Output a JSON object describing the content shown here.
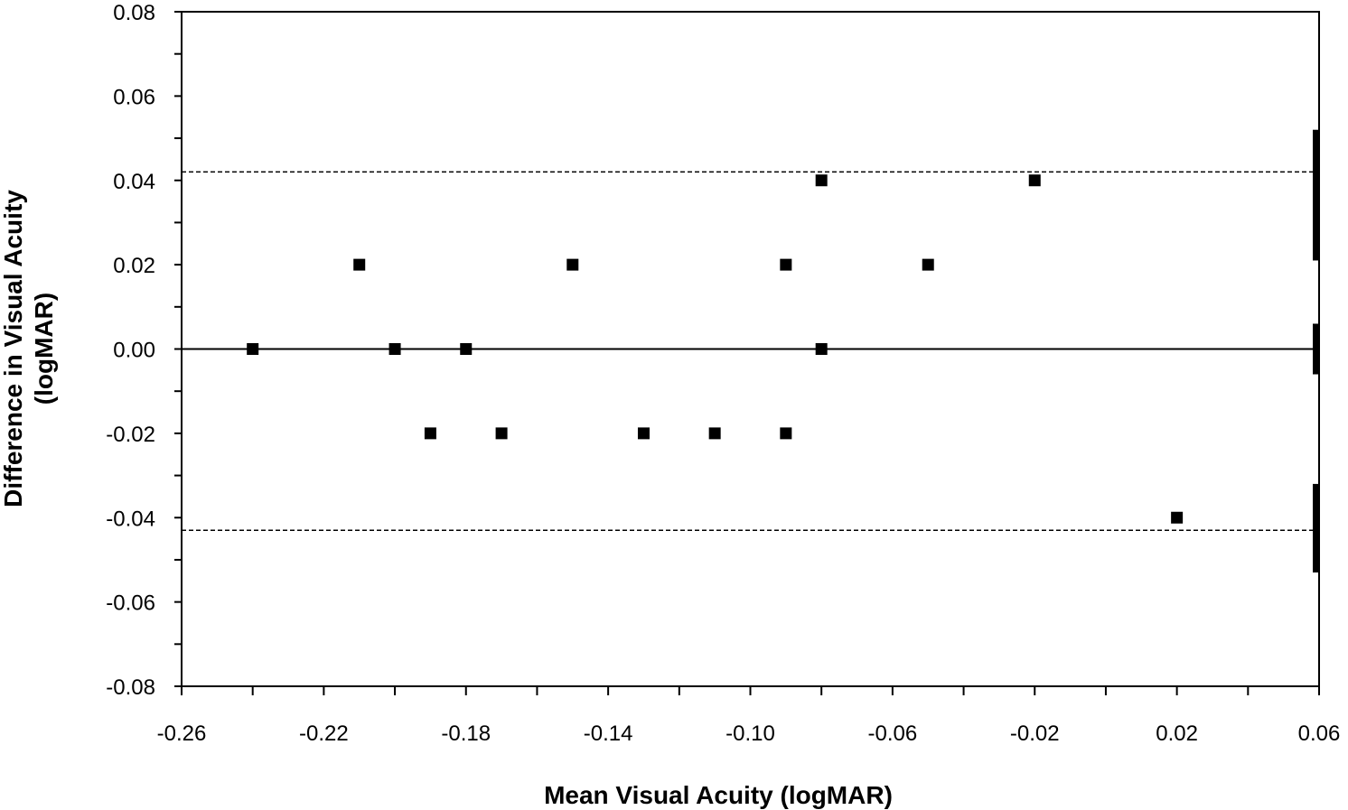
{
  "chart_data": {
    "type": "scatter",
    "title": "",
    "xlabel": "Mean Visual Acuity (logMAR)",
    "ylabel_lines": [
      "Difference in Visual Acuity",
      "(logMAR)"
    ],
    "xlim": [
      -0.26,
      0.06
    ],
    "ylim": [
      -0.08,
      0.08
    ],
    "x_ticks": [
      "-0.26",
      "-0.22",
      "-0.18",
      "-0.14",
      "-0.10",
      "-0.06",
      "-0.02",
      "0.02",
      "0.06"
    ],
    "y_ticks": [
      "0.08",
      "0.06",
      "0.04",
      "0.02",
      "0.00",
      "-0.02",
      "-0.04",
      "-0.06",
      "-0.08"
    ],
    "grid": false,
    "legend": "none",
    "reference_lines": [
      {
        "kind": "mean",
        "y": 0.0,
        "style": "solid"
      },
      {
        "kind": "upper-limit",
        "y": 0.042,
        "style": "dashed"
      },
      {
        "kind": "lower-limit",
        "y": -0.043,
        "style": "dashed"
      }
    ],
    "right_edge_bars": [
      {
        "y_from": 0.021,
        "y_to": 0.052
      },
      {
        "y_from": -0.006,
        "y_to": 0.006
      },
      {
        "y_from": -0.053,
        "y_to": -0.032
      }
    ],
    "points": [
      {
        "x": -0.24,
        "y": 0.0
      },
      {
        "x": -0.21,
        "y": 0.02
      },
      {
        "x": -0.2,
        "y": 0.0
      },
      {
        "x": -0.19,
        "y": -0.02
      },
      {
        "x": -0.18,
        "y": 0.0
      },
      {
        "x": -0.17,
        "y": -0.02
      },
      {
        "x": -0.15,
        "y": 0.02
      },
      {
        "x": -0.13,
        "y": -0.02
      },
      {
        "x": -0.11,
        "y": -0.02
      },
      {
        "x": -0.09,
        "y": 0.02
      },
      {
        "x": -0.09,
        "y": -0.02
      },
      {
        "x": -0.08,
        "y": 0.04
      },
      {
        "x": -0.08,
        "y": 0.0
      },
      {
        "x": -0.05,
        "y": 0.02
      },
      {
        "x": -0.02,
        "y": 0.04
      },
      {
        "x": 0.02,
        "y": -0.04
      }
    ],
    "colors": {
      "marker": "#000000",
      "axis": "#000000",
      "background": "#ffffff"
    }
  }
}
